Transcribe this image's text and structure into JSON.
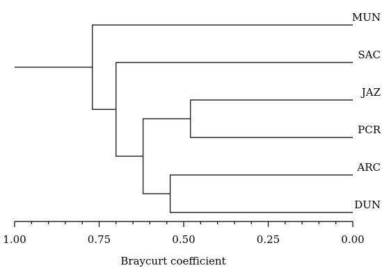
{
  "chart_data": {
    "type": "dendrogram",
    "xlabel": "Braycurt coefficient",
    "xlim": [
      1.0,
      0.0
    ],
    "x_reversed": true,
    "ticks": [
      {
        "value": 1.0,
        "label": "1.00"
      },
      {
        "value": 0.75,
        "label": "0.75"
      },
      {
        "value": 0.5,
        "label": "0.50"
      },
      {
        "value": 0.25,
        "label": "0.25"
      },
      {
        "value": 0.0,
        "label": "0.00"
      }
    ],
    "minor_tick_step": 0.05,
    "leaves": [
      "MUN",
      "SAC",
      "JAZ",
      "PCR",
      "ARC",
      "DUN"
    ],
    "merges": [
      {
        "id": "c1",
        "children": [
          "JAZ",
          "PCR"
        ],
        "height": 0.48
      },
      {
        "id": "c2",
        "children": [
          "ARC",
          "DUN"
        ],
        "height": 0.54
      },
      {
        "id": "c3",
        "children": [
          "c1",
          "c2"
        ],
        "height": 0.62
      },
      {
        "id": "c4",
        "children": [
          "SAC",
          "c3"
        ],
        "height": 0.7
      },
      {
        "id": "c5",
        "children": [
          "MUN",
          "c4"
        ],
        "height": 0.77
      }
    ],
    "root_stem_to": 1.0
  }
}
